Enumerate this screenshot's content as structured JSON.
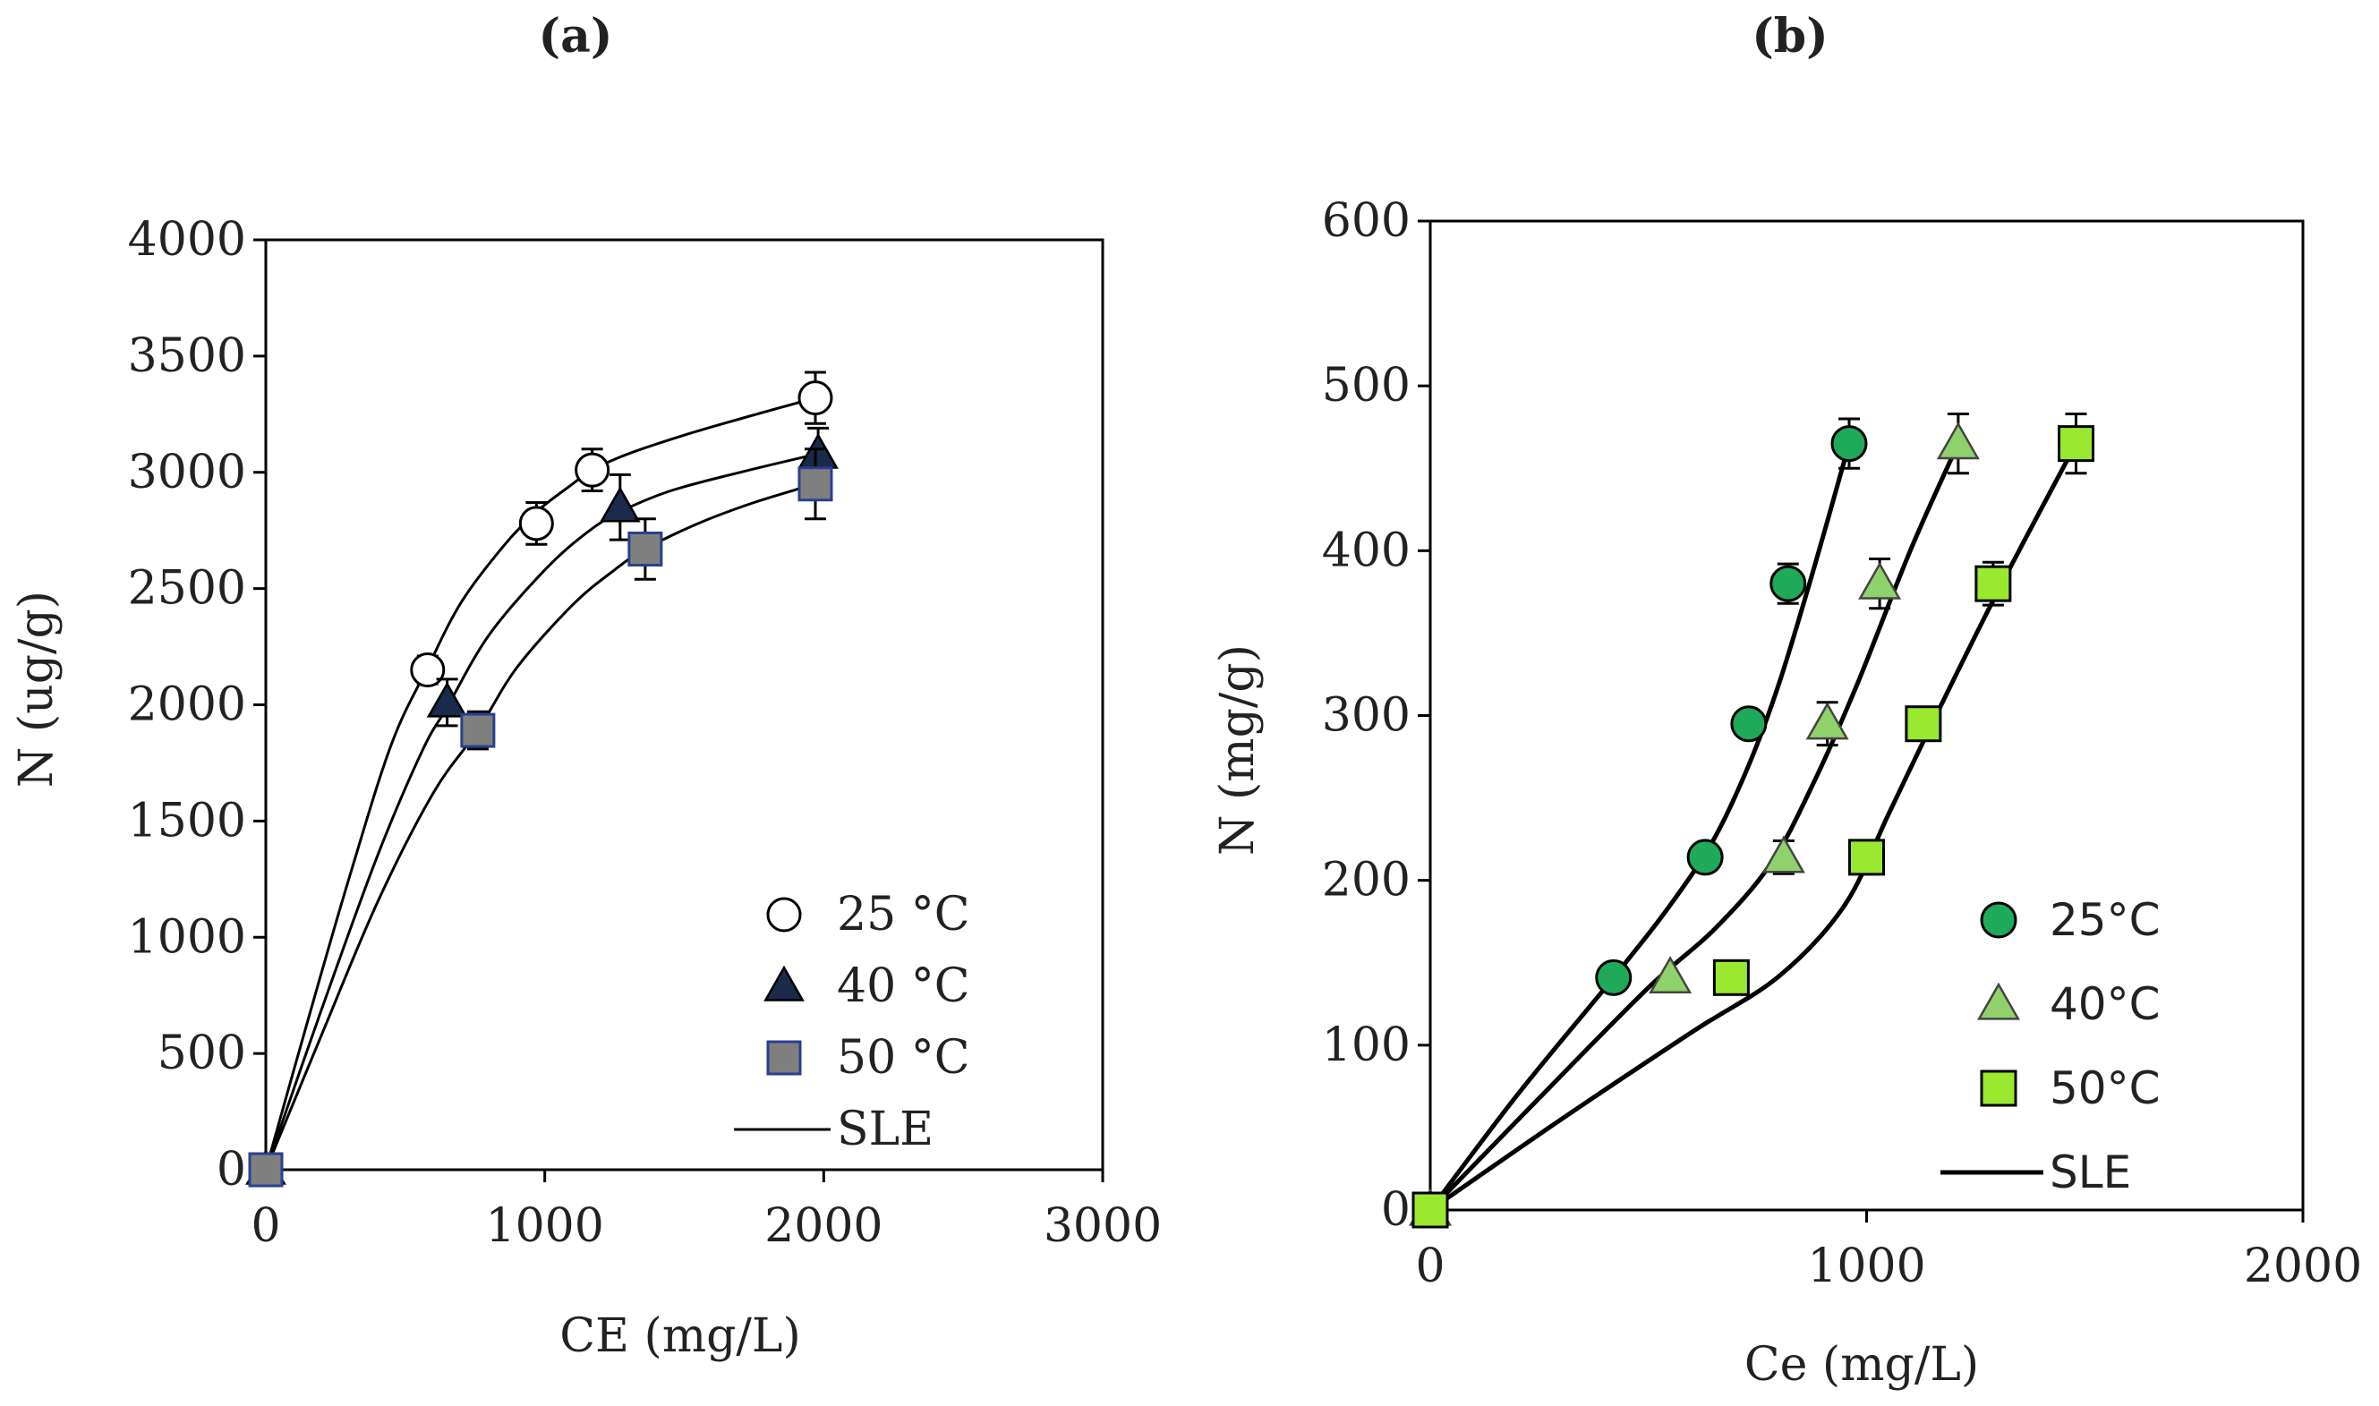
{
  "chart_data": [
    {
      "type": "scatter",
      "panel_label": "(a)",
      "xlabel": "CE (mg/L)",
      "ylabel": "N (ug/g)",
      "xlim": [
        0,
        3000
      ],
      "ylim": [
        0,
        4000
      ],
      "xticks": [
        0,
        1000,
        2000,
        3000
      ],
      "yticks": [
        0,
        500,
        1000,
        1500,
        2000,
        2500,
        3000,
        3500,
        4000
      ],
      "legend_position": "bottom-right",
      "series": [
        {
          "name": "25 °C",
          "marker": "circle-open",
          "color": "#ffffff",
          "x": [
            0,
            580,
            970,
            1170,
            1970
          ],
          "y": [
            0,
            2150,
            2780,
            3010,
            3320
          ],
          "err": [
            0,
            60,
            90,
            90,
            110
          ]
        },
        {
          "name": "40 °C",
          "marker": "triangle",
          "color": "#1a2a4a",
          "x": [
            0,
            650,
            1270,
            1980
          ],
          "y": [
            0,
            2010,
            2850,
            3080
          ],
          "err": [
            0,
            100,
            140,
            110
          ]
        },
        {
          "name": "50 °C",
          "marker": "square",
          "color": "#7f7f7f",
          "x": [
            0,
            760,
            1360,
            1970
          ],
          "y": [
            0,
            1890,
            2670,
            2950
          ],
          "err": [
            0,
            80,
            130,
            150
          ]
        }
      ],
      "fit_name": "SLE",
      "fits": [
        {
          "x": [
            0,
            150,
            300,
            450,
            580,
            700,
            850,
            970,
            1100,
            1170,
            1300,
            1500,
            1700,
            1970
          ],
          "y": [
            0,
            640,
            1260,
            1830,
            2160,
            2440,
            2680,
            2830,
            2950,
            3010,
            3080,
            3160,
            3230,
            3320
          ]
        },
        {
          "x": [
            0,
            200,
            400,
            560,
            650,
            800,
            1000,
            1150,
            1270,
            1450,
            1700,
            1980
          ],
          "y": [
            0,
            690,
            1350,
            1800,
            1990,
            2300,
            2580,
            2740,
            2830,
            2920,
            3000,
            3080
          ]
        },
        {
          "x": [
            0,
            200,
            400,
            600,
            760,
            900,
            1100,
            1250,
            1360,
            1550,
            1750,
            1970
          ],
          "y": [
            0,
            580,
            1150,
            1620,
            1890,
            2160,
            2430,
            2580,
            2670,
            2780,
            2870,
            2950
          ]
        }
      ]
    },
    {
      "type": "scatter",
      "panel_label": "(b)",
      "xlabel": "Ce (mg/L)",
      "ylabel": "N (mg/g)",
      "xlim": [
        0,
        2000
      ],
      "ylim": [
        0,
        600
      ],
      "xticks": [
        0,
        1000,
        2000
      ],
      "yticks": [
        0,
        100,
        200,
        300,
        400,
        500,
        600
      ],
      "legend_position": "bottom-right",
      "series": [
        {
          "name": "25°C",
          "marker": "circle",
          "color": "#1faa5a",
          "x": [
            0,
            420,
            630,
            730,
            820,
            960
          ],
          "y": [
            0,
            141,
            214,
            295,
            380,
            465
          ],
          "err": [
            0,
            0,
            0,
            0,
            12,
            15
          ]
        },
        {
          "name": "40°C",
          "marker": "triangle",
          "color": "#8fd16b",
          "x": [
            0,
            550,
            810,
            910,
            1030,
            1210
          ],
          "y": [
            0,
            141,
            214,
            295,
            380,
            465
          ],
          "err": [
            0,
            0,
            10,
            13,
            15,
            18
          ]
        },
        {
          "name": "50°C",
          "marker": "square",
          "color": "#9be830",
          "x": [
            0,
            690,
            1000,
            1130,
            1290,
            1480
          ],
          "y": [
            0,
            141,
            214,
            295,
            380,
            465
          ],
          "err": [
            0,
            0,
            0,
            10,
            13,
            18
          ]
        }
      ],
      "fit_name": "SLE",
      "fits": [
        {
          "x": [
            0,
            200,
            420,
            550,
            650,
            730,
            800,
            880,
            960
          ],
          "y": [
            0,
            70,
            141,
            185,
            225,
            270,
            320,
            390,
            465
          ]
        },
        {
          "x": [
            0,
            250,
            500,
            650,
            780,
            880,
            980,
            1100,
            1210
          ],
          "y": [
            0,
            68,
            135,
            170,
            210,
            260,
            320,
            400,
            465
          ]
        },
        {
          "x": [
            0,
            300,
            600,
            800,
            950,
            1050,
            1150,
            1300,
            1480
          ],
          "y": [
            0,
            55,
            108,
            142,
            185,
            240,
            295,
            375,
            465
          ]
        }
      ]
    }
  ]
}
